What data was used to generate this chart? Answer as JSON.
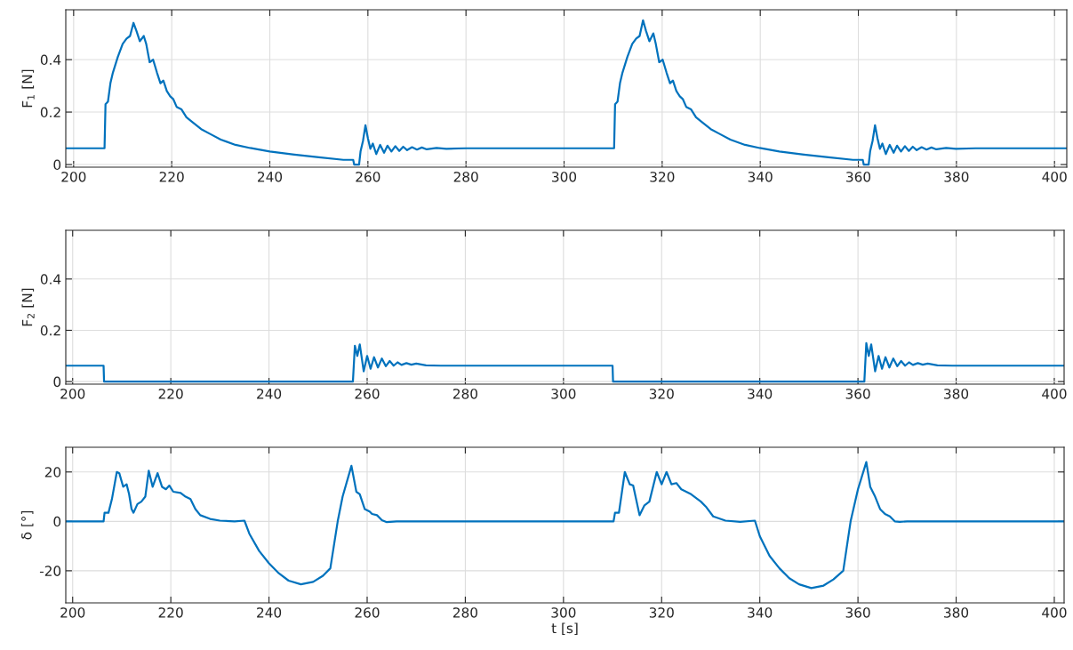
{
  "chart_data": [
    {
      "type": "line",
      "ylabel": "F$_{1}$ [N]",
      "xlim": [
        198.4,
        402.5
      ],
      "ylim": [
        -0.01,
        0.59
      ],
      "xticks": [
        200,
        220,
        240,
        260,
        280,
        300,
        320,
        340,
        360,
        380,
        400
      ],
      "yticks": [
        0,
        0.2,
        0.4
      ],
      "grid": true,
      "series": [
        {
          "color": "#0072bd",
          "x": [
            198.4,
            206.3,
            206.5,
            207,
            207.5,
            208,
            209,
            210,
            210.8,
            211.5,
            212.2,
            212.8,
            213.5,
            214.3,
            214.8,
            215.5,
            216.2,
            217,
            217.7,
            218.3,
            219,
            219.7,
            220.3,
            221,
            222,
            223,
            224,
            226,
            228,
            230,
            233,
            236,
            240,
            245,
            250,
            255,
            257,
            257.2,
            258.2,
            258.5,
            259,
            259.5,
            260,
            260.5,
            261,
            261.7,
            262.5,
            263.3,
            264,
            264.8,
            265.6,
            266.4,
            267.2,
            268,
            269,
            270,
            271,
            272,
            274,
            276,
            280,
            310.2,
            310.4,
            310.9,
            311.4,
            311.9,
            312.9,
            313.9,
            314.7,
            315.4,
            316.1,
            316.7,
            317.4,
            318.2,
            318.7,
            319.4,
            320.1,
            320.9,
            321.6,
            322.2,
            322.9,
            323.6,
            324.2,
            324.9,
            325.9,
            326.9,
            327.9,
            329.9,
            331.9,
            333.9,
            336.9,
            339.9,
            343.9,
            348.9,
            353.9,
            358.9,
            360.9,
            361.1,
            362.1,
            362.4,
            362.9,
            363.4,
            363.9,
            364.4,
            364.9,
            365.6,
            366.4,
            367.2,
            367.9,
            368.7,
            369.5,
            370.3,
            371.1,
            371.9,
            372.9,
            373.9,
            374.9,
            375.9,
            377.9,
            379.9,
            383.9,
            402.5
          ],
          "values": [
            0.062,
            0.062,
            0.23,
            0.24,
            0.31,
            0.35,
            0.41,
            0.46,
            0.48,
            0.49,
            0.54,
            0.51,
            0.47,
            0.49,
            0.46,
            0.39,
            0.4,
            0.35,
            0.31,
            0.32,
            0.28,
            0.26,
            0.25,
            0.22,
            0.21,
            0.18,
            0.165,
            0.135,
            0.115,
            0.095,
            0.075,
            0.063,
            0.05,
            0.038,
            0.028,
            0.018,
            0.018,
            0.0,
            0.0,
            0.05,
            0.09,
            0.15,
            0.1,
            0.06,
            0.08,
            0.04,
            0.075,
            0.045,
            0.072,
            0.05,
            0.07,
            0.052,
            0.068,
            0.055,
            0.066,
            0.057,
            0.065,
            0.058,
            0.063,
            0.06,
            0.062,
            0.062,
            0.23,
            0.24,
            0.31,
            0.35,
            0.41,
            0.46,
            0.48,
            0.49,
            0.55,
            0.51,
            0.47,
            0.5,
            0.46,
            0.39,
            0.4,
            0.35,
            0.31,
            0.32,
            0.28,
            0.26,
            0.25,
            0.22,
            0.21,
            0.18,
            0.165,
            0.135,
            0.115,
            0.095,
            0.075,
            0.063,
            0.05,
            0.038,
            0.028,
            0.018,
            0.018,
            0.0,
            0.0,
            0.05,
            0.09,
            0.15,
            0.1,
            0.06,
            0.08,
            0.04,
            0.075,
            0.045,
            0.072,
            0.05,
            0.07,
            0.052,
            0.068,
            0.055,
            0.066,
            0.057,
            0.065,
            0.058,
            0.063,
            0.06,
            0.062,
            0.062
          ]
        }
      ]
    },
    {
      "type": "line",
      "ylabel": "F$_{2}$ [N]",
      "xlim": [
        198.6,
        402
      ],
      "ylim": [
        -0.01,
        0.59
      ],
      "xticks": [
        200,
        220,
        240,
        260,
        280,
        300,
        320,
        340,
        360,
        380,
        400
      ],
      "yticks": [
        0,
        0.2,
        0.4
      ],
      "grid": true,
      "series": [
        {
          "color": "#0072bd",
          "x": [
            198.6,
            206.3,
            206.4,
            257.1,
            257.5,
            258,
            258.5,
            259.3,
            260,
            260.7,
            261.4,
            262.2,
            263,
            263.8,
            264.6,
            265.4,
            266.2,
            267,
            268,
            269,
            270,
            272,
            275,
            310,
            310.1,
            361.3,
            361.7,
            362.2,
            362.7,
            363.5,
            364.2,
            364.9,
            365.6,
            366.4,
            367.2,
            368,
            368.8,
            369.6,
            370.4,
            371.2,
            372.2,
            373.2,
            374.2,
            376.2,
            379.2,
            402
          ],
          "values": [
            0.062,
            0.062,
            0.0,
            0.0,
            0.14,
            0.1,
            0.145,
            0.04,
            0.1,
            0.05,
            0.095,
            0.055,
            0.09,
            0.06,
            0.08,
            0.062,
            0.075,
            0.065,
            0.072,
            0.066,
            0.07,
            0.063,
            0.062,
            0.062,
            0.0,
            0.0,
            0.15,
            0.1,
            0.145,
            0.04,
            0.1,
            0.05,
            0.095,
            0.055,
            0.09,
            0.06,
            0.08,
            0.062,
            0.075,
            0.065,
            0.072,
            0.066,
            0.07,
            0.063,
            0.062,
            0.062
          ]
        }
      ]
    },
    {
      "type": "line",
      "ylabel": "δ [°]",
      "xlabel": "t [s]",
      "xlim": [
        198.6,
        402
      ],
      "ylim": [
        -33,
        30
      ],
      "xticks": [
        200,
        220,
        240,
        260,
        280,
        300,
        320,
        340,
        360,
        380,
        400
      ],
      "yticks": [
        -20,
        0,
        20
      ],
      "grid": true,
      "series": [
        {
          "color": "#0072bd",
          "x": [
            198.6,
            206.3,
            206.5,
            207.3,
            208,
            209,
            209.5,
            210.3,
            211,
            211.5,
            212,
            212.4,
            213.2,
            214,
            214.8,
            215.5,
            216.3,
            217.3,
            218.2,
            219,
            219.7,
            220.5,
            222,
            223,
            224,
            225,
            226,
            228,
            230,
            233,
            235,
            236,
            238,
            240,
            242,
            244,
            246.5,
            249,
            251,
            252.5,
            254,
            255,
            256.8,
            257.8,
            258.5,
            259.5,
            260.5,
            261,
            262,
            263,
            264,
            266,
            310,
            310.2,
            310.5,
            311.3,
            312.5,
            313.5,
            314.2,
            315.5,
            316.5,
            317.5,
            319,
            320,
            321,
            322,
            323,
            324,
            326,
            328,
            329,
            330.5,
            333,
            336,
            339,
            340,
            342,
            344,
            346,
            348,
            350.5,
            353,
            355,
            357,
            358.5,
            360,
            361.7,
            362.5,
            363.5,
            364.5,
            365.5,
            366.5,
            367.5,
            368.5,
            370,
            402
          ],
          "values": [
            0,
            0,
            3.5,
            3.5,
            9,
            20,
            19.5,
            14,
            15,
            11,
            5,
            3.5,
            7,
            8,
            10,
            20.5,
            14,
            19.5,
            14,
            13,
            14.5,
            12,
            11.5,
            10,
            9,
            5,
            2.5,
            1,
            0.3,
            0,
            0.3,
            -5,
            -12,
            -17,
            -21,
            -24,
            -25.5,
            -24.5,
            -22,
            -19,
            0,
            10,
            22.5,
            12,
            11,
            5,
            4,
            3,
            2.5,
            0.5,
            -0.3,
            0,
            0,
            0,
            3.5,
            3.5,
            20,
            15,
            14.5,
            2.5,
            6.5,
            8,
            20,
            15,
            20,
            15,
            15.5,
            13,
            11,
            8,
            6,
            2,
            0.3,
            -0.2,
            0.3,
            -6,
            -14,
            -19,
            -23,
            -25.5,
            -27,
            -26,
            -23.5,
            -20,
            0,
            13,
            24,
            14,
            10,
            5,
            3,
            2,
            0,
            -0.2,
            0,
            0
          ]
        }
      ]
    }
  ]
}
